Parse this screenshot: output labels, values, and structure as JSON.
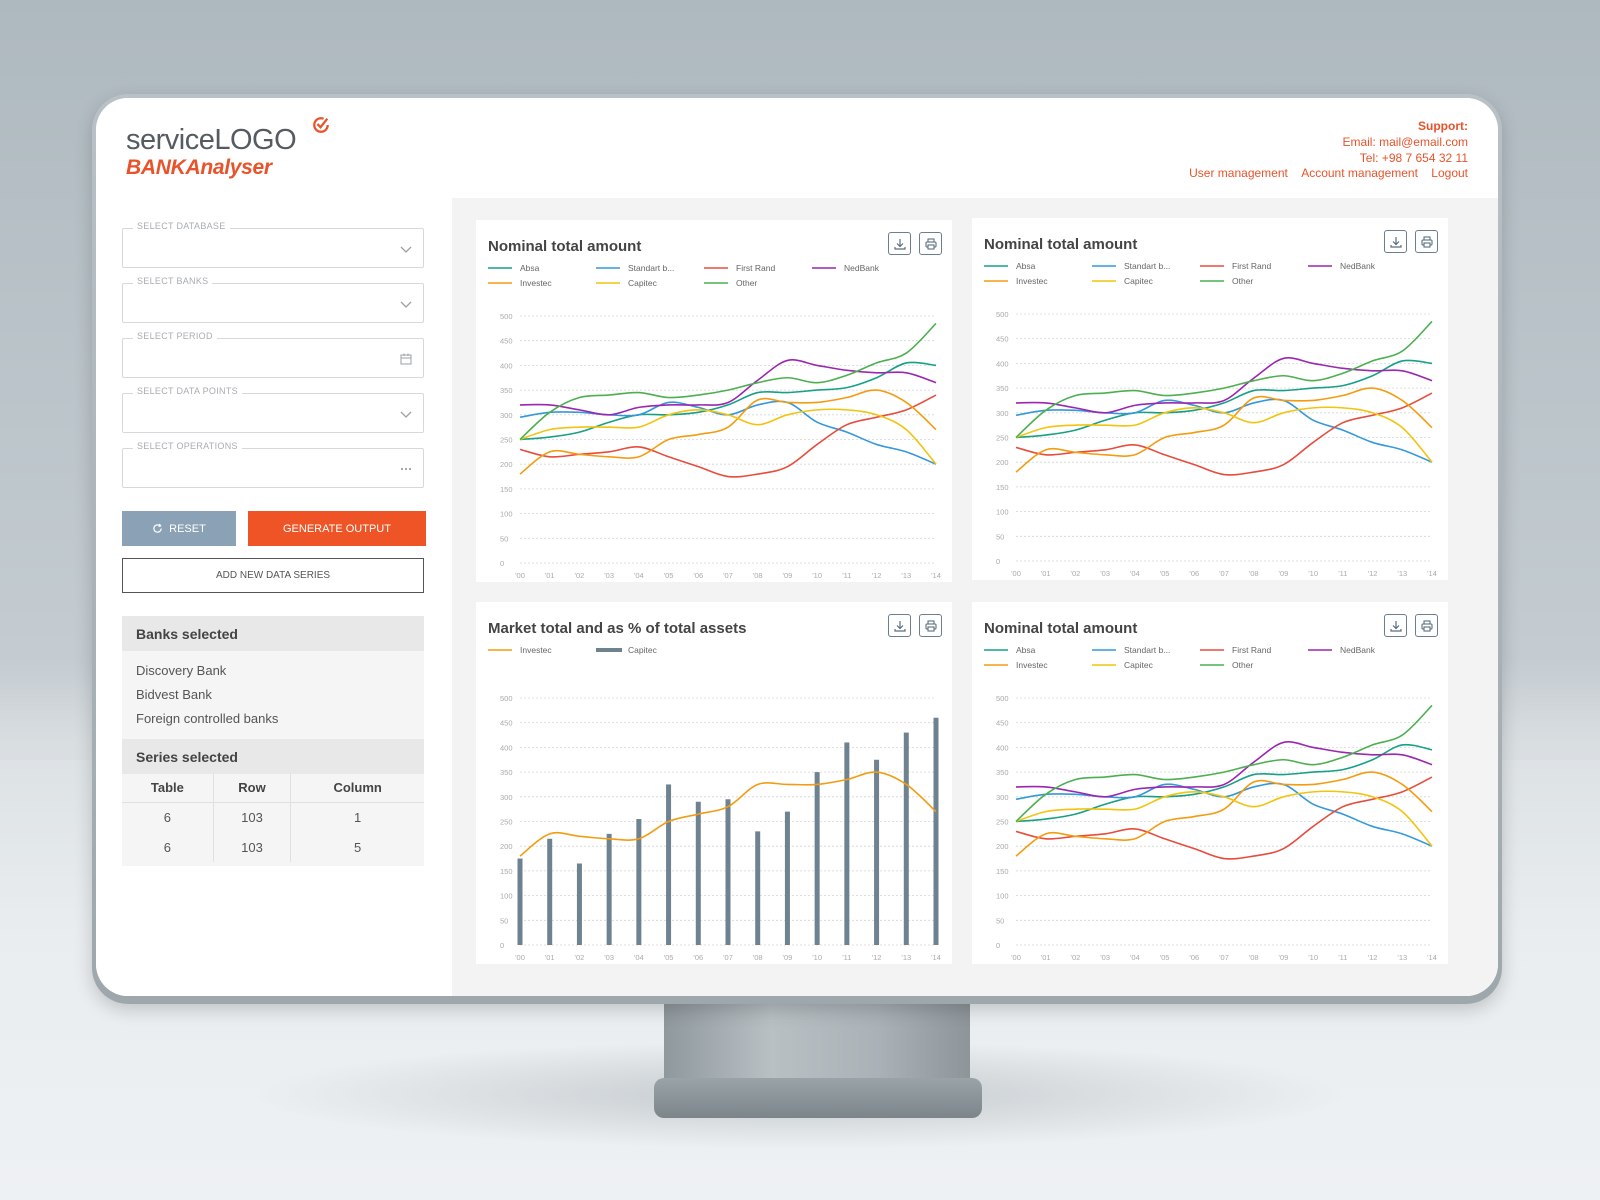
{
  "brand": {
    "logo_word": "service",
    "logo_caps": "LOGO",
    "product": "BANKAnalyser",
    "accent": "#e8532b"
  },
  "support": {
    "title": "Support:",
    "email": "Email: mail@email.com",
    "phone": "Tel: +98 7 654 32 11"
  },
  "nav": {
    "user_management": "User management",
    "account_management": "Account management",
    "logout": "Logout"
  },
  "form": {
    "database_label": "SELECT DATABASE",
    "banks_label": "SELECT BANKS",
    "period_label": "SELECT PERIOD",
    "data_points_label": "SELECT DATA POINTS",
    "operations_label": "SELECT OPERATIONS",
    "reset": "RESET",
    "generate": "GENERATE OUTPUT",
    "add_series": "ADD NEW DATA SERIES"
  },
  "banks_selected": {
    "title": "Banks selected",
    "items": [
      "Discovery Bank",
      "Bidvest Bank",
      "Foreign controlled banks"
    ]
  },
  "series_selected": {
    "title": "Series selected",
    "headers": [
      "Table",
      "Row",
      "Column"
    ],
    "rows": [
      [
        "6",
        "103",
        "1"
      ],
      [
        "6",
        "103",
        "5"
      ]
    ]
  },
  "chart_data": [
    {
      "type": "line",
      "title": "Nominal total amount",
      "x": [
        "'00",
        "'01",
        "'02",
        "'03",
        "'04",
        "'05",
        "'06",
        "'07",
        "'08",
        "'09",
        "'10",
        "'11",
        "'12",
        "'13",
        "'14"
      ],
      "ylim": [
        0,
        500
      ],
      "yticks": [
        0,
        50,
        100,
        150,
        200,
        250,
        300,
        350,
        400,
        450,
        500
      ],
      "grid": true,
      "legend_position": "top",
      "series": [
        {
          "name": "Absa",
          "color": "#16a085",
          "values": [
            250,
            255,
            265,
            285,
            300,
            300,
            305,
            320,
            345,
            345,
            350,
            355,
            375,
            405,
            400
          ]
        },
        {
          "name": "Standart b...",
          "color": "#3498db",
          "values": [
            295,
            305,
            305,
            300,
            300,
            325,
            315,
            300,
            320,
            325,
            285,
            265,
            240,
            225,
            200
          ]
        },
        {
          "name": "First Rand",
          "color": "#e74c3c",
          "values": [
            230,
            215,
            220,
            225,
            235,
            215,
            195,
            175,
            180,
            195,
            240,
            280,
            295,
            310,
            340
          ]
        },
        {
          "name": "NedBank",
          "color": "#9b27b0",
          "values": [
            320,
            320,
            310,
            300,
            315,
            320,
            320,
            325,
            370,
            410,
            400,
            390,
            385,
            385,
            365
          ]
        },
        {
          "name": "Investec",
          "color": "#f39c12",
          "values": [
            180,
            225,
            220,
            215,
            215,
            250,
            260,
            275,
            330,
            325,
            325,
            335,
            350,
            325,
            270
          ]
        },
        {
          "name": "Capitec",
          "color": "#f1c40f",
          "values": [
            250,
            270,
            275,
            275,
            275,
            300,
            310,
            300,
            280,
            300,
            310,
            310,
            300,
            270,
            200
          ]
        },
        {
          "name": "Other",
          "color": "#4caf50",
          "values": [
            250,
            305,
            335,
            340,
            345,
            335,
            340,
            350,
            365,
            375,
            365,
            380,
            405,
            425,
            485
          ]
        }
      ]
    },
    {
      "type": "line",
      "title": "Nominal total amount",
      "x": [
        "'00",
        "'01",
        "'02",
        "'03",
        "'04",
        "'05",
        "'06",
        "'07",
        "'08",
        "'09",
        "'10",
        "'11",
        "'12",
        "'13",
        "'14"
      ],
      "ylim": [
        0,
        500
      ],
      "yticks": [
        0,
        50,
        100,
        150,
        200,
        250,
        300,
        350,
        400,
        450,
        500
      ],
      "grid": true,
      "legend_position": "top",
      "series": [
        {
          "name": "Absa",
          "color": "#16a085",
          "values": [
            250,
            255,
            265,
            285,
            300,
            300,
            305,
            320,
            345,
            345,
            350,
            355,
            375,
            405,
            400
          ]
        },
        {
          "name": "Standart b...",
          "color": "#3498db",
          "values": [
            295,
            305,
            305,
            300,
            300,
            325,
            315,
            300,
            320,
            325,
            285,
            265,
            240,
            225,
            200
          ]
        },
        {
          "name": "First Rand",
          "color": "#e74c3c",
          "values": [
            230,
            215,
            220,
            225,
            235,
            215,
            195,
            175,
            180,
            195,
            240,
            280,
            295,
            310,
            340
          ]
        },
        {
          "name": "NedBank",
          "color": "#9b27b0",
          "values": [
            320,
            320,
            310,
            300,
            315,
            320,
            320,
            325,
            370,
            410,
            400,
            390,
            385,
            385,
            365
          ]
        },
        {
          "name": "Investec",
          "color": "#f39c12",
          "values": [
            180,
            225,
            220,
            215,
            215,
            250,
            260,
            275,
            330,
            325,
            325,
            335,
            350,
            325,
            270
          ]
        },
        {
          "name": "Capitec",
          "color": "#f1c40f",
          "values": [
            250,
            270,
            275,
            275,
            275,
            300,
            310,
            300,
            280,
            300,
            310,
            310,
            300,
            270,
            200
          ]
        },
        {
          "name": "Other",
          "color": "#4caf50",
          "values": [
            250,
            305,
            335,
            340,
            345,
            335,
            340,
            350,
            365,
            375,
            365,
            380,
            405,
            425,
            485
          ]
        }
      ]
    },
    {
      "type": "bar",
      "title": "Market total and as % of total assets",
      "x": [
        "'00",
        "'01",
        "'02",
        "'03",
        "'04",
        "'05",
        "'06",
        "'07",
        "'08",
        "'09",
        "'10",
        "'11",
        "'12",
        "'13",
        "'14"
      ],
      "ylim": [
        0,
        500
      ],
      "yticks": [
        0,
        50,
        100,
        150,
        200,
        250,
        300,
        350,
        400,
        450,
        500
      ],
      "grid": true,
      "legend_position": "top",
      "series": [
        {
          "name": "Investec",
          "kind": "line",
          "color": "#f39c12",
          "values": [
            180,
            225,
            220,
            215,
            215,
            250,
            265,
            280,
            325,
            325,
            325,
            335,
            350,
            325,
            270
          ]
        },
        {
          "name": "Capitec",
          "kind": "bar",
          "color": "#6e8290",
          "values": [
            175,
            215,
            165,
            225,
            255,
            325,
            290,
            295,
            230,
            270,
            350,
            410,
            375,
            430,
            460
          ]
        }
      ]
    },
    {
      "type": "line",
      "title": "Nominal total amount",
      "x": [
        "'00",
        "'01",
        "'02",
        "'03",
        "'04",
        "'05",
        "'06",
        "'07",
        "'08",
        "'09",
        "'10",
        "'11",
        "'12",
        "'13",
        "'14"
      ],
      "ylim": [
        0,
        500
      ],
      "yticks": [
        0,
        50,
        100,
        150,
        200,
        250,
        300,
        350,
        400,
        450,
        500
      ],
      "grid": true,
      "legend_position": "top",
      "series": [
        {
          "name": "Absa",
          "color": "#16a085",
          "values": [
            250,
            255,
            265,
            285,
            300,
            300,
            305,
            320,
            345,
            345,
            350,
            355,
            375,
            405,
            395
          ]
        },
        {
          "name": "Standart b...",
          "color": "#3498db",
          "values": [
            295,
            305,
            305,
            300,
            300,
            325,
            315,
            300,
            320,
            325,
            285,
            265,
            240,
            225,
            200
          ]
        },
        {
          "name": "First Rand",
          "color": "#e74c3c",
          "values": [
            230,
            215,
            220,
            225,
            235,
            215,
            195,
            175,
            180,
            195,
            240,
            280,
            295,
            310,
            340
          ]
        },
        {
          "name": "NedBank",
          "color": "#9b27b0",
          "values": [
            320,
            320,
            310,
            300,
            315,
            320,
            320,
            325,
            370,
            410,
            400,
            390,
            385,
            385,
            365
          ]
        },
        {
          "name": "Investec",
          "color": "#f39c12",
          "values": [
            180,
            225,
            220,
            215,
            215,
            250,
            260,
            275,
            330,
            325,
            325,
            335,
            350,
            325,
            270
          ]
        },
        {
          "name": "Capitec",
          "color": "#f1c40f",
          "values": [
            250,
            270,
            275,
            275,
            275,
            300,
            310,
            300,
            280,
            300,
            310,
            310,
            300,
            270,
            200
          ]
        },
        {
          "name": "Other",
          "color": "#4caf50",
          "values": [
            250,
            305,
            335,
            340,
            345,
            335,
            340,
            350,
            365,
            375,
            365,
            380,
            405,
            425,
            485
          ]
        }
      ]
    }
  ]
}
